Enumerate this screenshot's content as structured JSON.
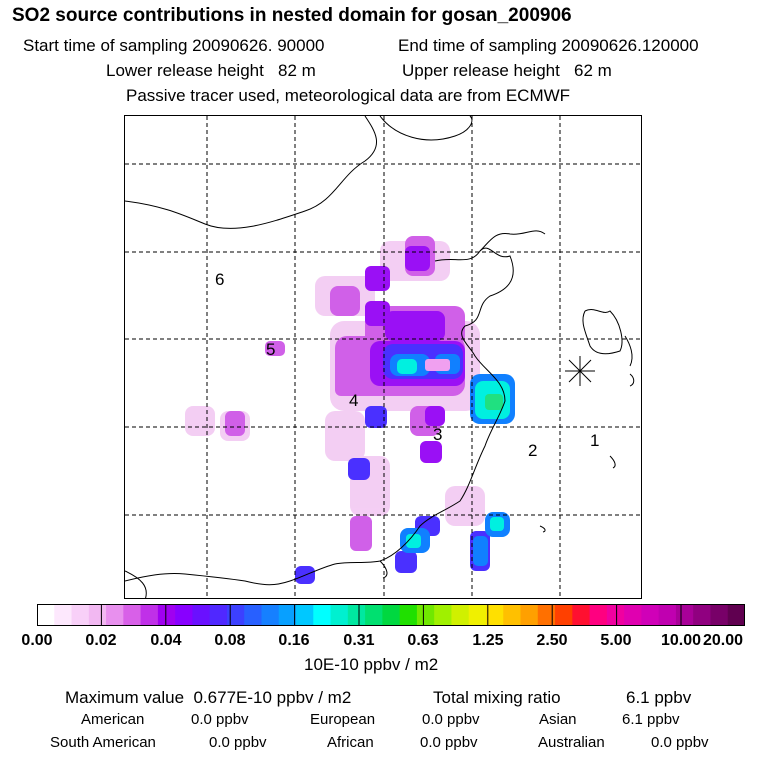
{
  "header": {
    "title": "SO2 source contributions in nested domain for gosan_200906",
    "start_label": "Start time of sampling 20090626. 90000",
    "end_label": "End time of sampling 20090626.120000",
    "lower_label": "Lower release height   82 m",
    "upper_label": "Upper release height   62 m",
    "note": "Passive tracer used, meteorological data are from ECMWF"
  },
  "map": {
    "region_labels": [
      "1",
      "2",
      "3",
      "4",
      "5",
      "6"
    ]
  },
  "colorbar": {
    "ticks": [
      "0.00",
      "0.02",
      "0.04",
      "0.08",
      "0.16",
      "0.31",
      "0.63",
      "1.25",
      "2.50",
      "5.00",
      "10.00",
      "20.00"
    ],
    "unit": "10E-10 ppbv / m2",
    "colors": [
      "#ffffff",
      "#fde8fd",
      "#f8d0f8",
      "#f2b8f2",
      "#e890ee",
      "#d860e8",
      "#c030e8",
      "#a000f0",
      "#8800ff",
      "#6a10ff",
      "#5028ff",
      "#3c40ff",
      "#2860ff",
      "#1680ff",
      "#08a0ff",
      "#00c8ff",
      "#00ffff",
      "#00f0d0",
      "#00e8a0",
      "#00e070",
      "#00d840",
      "#20e000",
      "#70e800",
      "#a0f000",
      "#d0f000",
      "#f0f000",
      "#ffe000",
      "#ffc000",
      "#ffa000",
      "#ff7000",
      "#ff4000",
      "#ff1030",
      "#ff0080",
      "#f000a0",
      "#e000b0",
      "#d000b8",
      "#c000b0",
      "#a80098",
      "#900080",
      "#780068",
      "#600050"
    ]
  },
  "footer": {
    "max_label": "Maximum value  0.677E-10 ppbv / m2",
    "total_label": "Total mixing ratio",
    "total_value": "6.1 ppbv",
    "american_label": "American",
    "american_value": "0.0 ppbv",
    "european_label": "European",
    "european_value": "0.0 ppbv",
    "asian_label": "Asian",
    "asian_value": "6.1 ppbv",
    "southamerican_label": "South American",
    "southamerican_value": "0.0 ppbv",
    "african_label": "African",
    "african_value": "0.0 ppbv",
    "australian_label": "Australian",
    "australian_value": "0.0 ppbv"
  },
  "chart_data": {
    "type": "heatmap",
    "title": "SO2 source contributions in nested domain for gosan_200906",
    "max_value": 0.677,
    "unit": "10E-10 ppbv / m2",
    "receptor": "gosan",
    "total_mixing_ratio": 6.1
  }
}
